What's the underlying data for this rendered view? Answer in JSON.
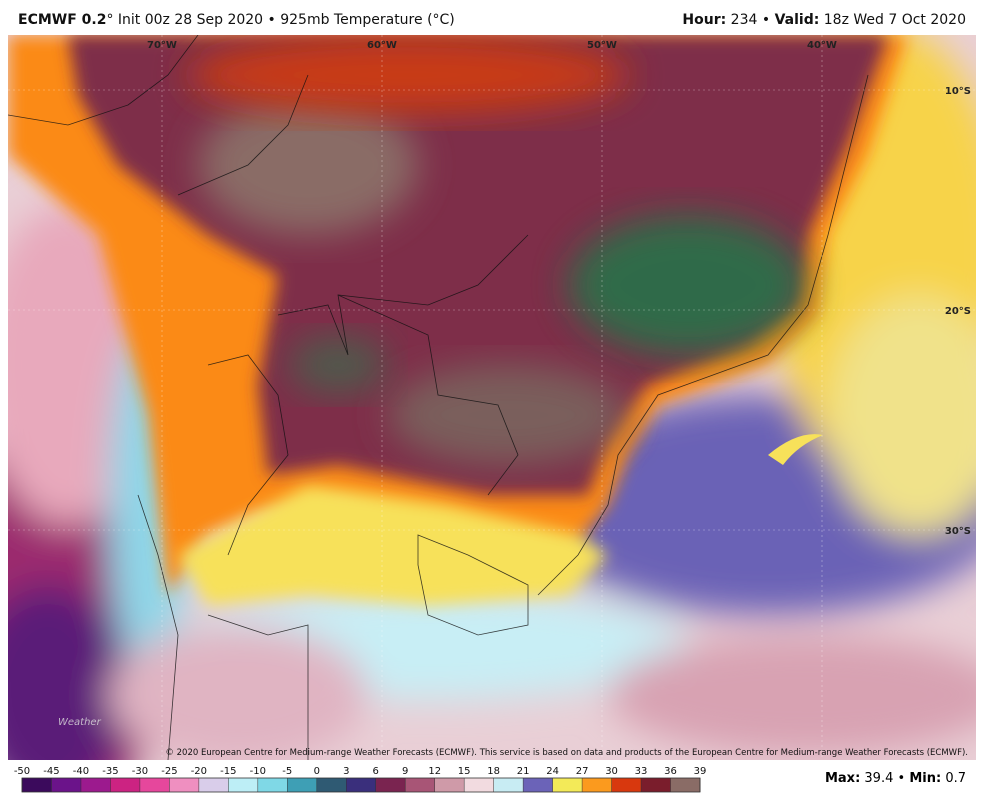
{
  "header": {
    "model": "ECMWF 0.2",
    "title_rest": "° Init 00z 28 Sep 2020 • 925mb Temperature (°C)",
    "hour_label": "Hour:",
    "hour": "234",
    "separator": "•",
    "valid_label": "Valid:",
    "valid": "18z Wed 7 Oct 2020"
  },
  "map": {
    "lon_labels": [
      {
        "value": -70,
        "label": "70°W"
      },
      {
        "value": -60,
        "label": "60°W"
      },
      {
        "value": -50,
        "label": "50°W"
      },
      {
        "value": -40,
        "label": "40°W"
      }
    ],
    "lat_labels": [
      {
        "value": -10,
        "label": "10°S"
      },
      {
        "value": -20,
        "label": "20°S"
      },
      {
        "value": -30,
        "label": "30°S"
      }
    ],
    "copyright": "© 2020 European Centre for Medium-range Weather Forecasts (ECMWF). This service is based on data and products of the European Centre for Medium-range Weather Forecasts (ECMWF)."
  },
  "colorbar": {
    "ticks": [
      -50,
      -45,
      -40,
      -35,
      -30,
      -25,
      -20,
      -15,
      -10,
      -5,
      0,
      3,
      6,
      9,
      12,
      15,
      18,
      21,
      24,
      27,
      30,
      33,
      36,
      39
    ],
    "colors": [
      "#3b0a5c",
      "#6b138a",
      "#9c1a8e",
      "#cc2382",
      "#e6479c",
      "#ef8fc0",
      "#d9cdea",
      "#bdeef6",
      "#7fd8e6",
      "#3e9fb5",
      "#2f5a73",
      "#3a2f7c",
      "#7a2450",
      "#a85576",
      "#cf9aa8",
      "#f2dbe0",
      "#c8ecf3",
      "#6b63b8",
      "#f3ea58",
      "#fb9a1e",
      "#d8380e",
      "#7a1d2c",
      "#8a6c66",
      "#1c7a48"
    ]
  },
  "stats": {
    "max_label": "Max:",
    "max": 39.4,
    "separator": "•",
    "min_label": "Min:",
    "min": 0.7
  }
}
